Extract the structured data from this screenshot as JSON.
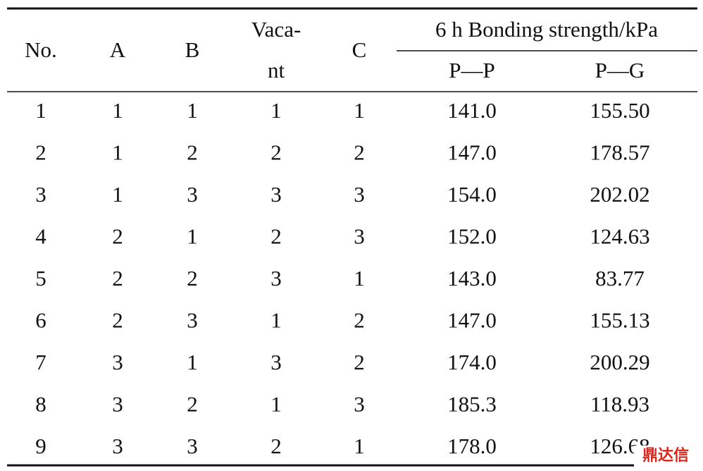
{
  "table": {
    "header": {
      "no": "No.",
      "a": "A",
      "b": "B",
      "vacant": [
        "Vaca-",
        "nt"
      ],
      "c": "C",
      "group": "6 h Bonding strength/kPa",
      "pp": "P—P",
      "pg": "P—G"
    },
    "rows": [
      [
        "1",
        "1",
        "1",
        "1",
        "1",
        "141.0",
        "155.50"
      ],
      [
        "2",
        "1",
        "2",
        "2",
        "2",
        "147.0",
        "178.57"
      ],
      [
        "3",
        "1",
        "3",
        "3",
        "3",
        "154.0",
        "202.02"
      ],
      [
        "4",
        "2",
        "1",
        "2",
        "3",
        "152.0",
        "124.63"
      ],
      [
        "5",
        "2",
        "2",
        "3",
        "1",
        "143.0",
        "83.77"
      ],
      [
        "6",
        "2",
        "3",
        "1",
        "2",
        "147.0",
        "155.13"
      ],
      [
        "7",
        "3",
        "1",
        "3",
        "2",
        "174.0",
        "200.29"
      ],
      [
        "8",
        "3",
        "2",
        "1",
        "3",
        "185.3",
        "118.93"
      ],
      [
        "9",
        "3",
        "3",
        "2",
        "1",
        "178.0",
        "126.68"
      ]
    ]
  },
  "watermark": "鼎达信"
}
